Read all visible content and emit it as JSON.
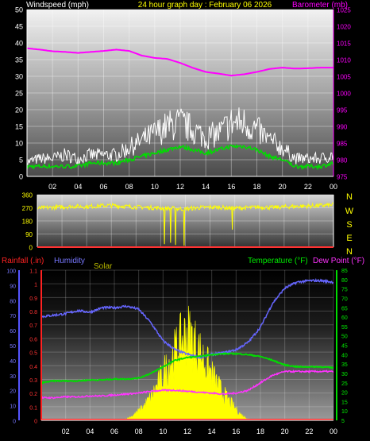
{
  "header": {
    "wind_label": "Windspeed (mph)",
    "title": "24 hour graph day : February 06 2026",
    "baro_label": "Barometer (mb)"
  },
  "panel3_labels": {
    "rain": "Rainfall (.in)",
    "humidity": "Humidity",
    "solar": "Solar",
    "temperature": "Temperature (°F)",
    "dewpoint": "Dew Point (°F)"
  },
  "compass": [
    "N",
    "W",
    "S",
    "E",
    "N"
  ],
  "x_ticks": [
    "02",
    "04",
    "06",
    "08",
    "10",
    "12",
    "14",
    "16",
    "18",
    "20",
    "22",
    "00"
  ],
  "colors": {
    "wind_gust": "#ffffff",
    "wind_avg": "#00dd00",
    "barometer": "#ff00ff",
    "direction": "#ffff00",
    "temperature": "#00dd00",
    "dewpoint": "#ff33ff",
    "humidity": "#6666ff",
    "solar": "#ffff00",
    "rain": "#ff2222"
  },
  "chart_data": [
    {
      "type": "line",
      "name": "wind-barometer",
      "x_ticks": [
        "02",
        "04",
        "06",
        "08",
        "10",
        "12",
        "14",
        "16",
        "18",
        "20",
        "22",
        "00"
      ],
      "y_left": {
        "label": "Windspeed (mph)",
        "range": [
          0,
          50
        ],
        "ticks": [
          0,
          5,
          10,
          15,
          20,
          25,
          30,
          35,
          40,
          45,
          50
        ]
      },
      "y_right": {
        "label": "Barometer (mb)",
        "range": [
          975,
          1025
        ],
        "ticks": [
          975,
          980,
          985,
          990,
          995,
          1000,
          1005,
          1010,
          1015,
          1020,
          1025
        ]
      },
      "series": [
        {
          "name": "Windspeed",
          "axis": "left",
          "x": [
            0,
            1,
            2,
            3,
            4,
            5,
            6,
            7,
            8,
            9,
            10,
            11,
            12,
            13,
            14,
            15,
            16,
            17,
            18,
            19,
            20,
            21,
            22,
            23,
            24
          ],
          "values": [
            3,
            3,
            3,
            3,
            3,
            4,
            4,
            4,
            5,
            6,
            7,
            8,
            9,
            8,
            7,
            8,
            9,
            9,
            8,
            6,
            5,
            3,
            3,
            3,
            4
          ]
        },
        {
          "name": "Gust",
          "axis": "left",
          "x": [
            0,
            1,
            2,
            3,
            4,
            5,
            6,
            7,
            8,
            9,
            10,
            11,
            12,
            13,
            14,
            15,
            16,
            17,
            18,
            19,
            20,
            21,
            22,
            23,
            24
          ],
          "values": [
            4,
            5,
            5,
            6,
            5,
            6,
            6,
            6,
            8,
            10,
            12,
            14,
            15,
            13,
            11,
            12,
            15,
            15,
            13,
            10,
            8,
            5,
            5,
            5,
            6
          ]
        },
        {
          "name": "Barometer",
          "axis": "right",
          "x": [
            0,
            1,
            2,
            3,
            4,
            5,
            6,
            7,
            8,
            9,
            10,
            11,
            12,
            13,
            14,
            15,
            16,
            17,
            18,
            19,
            20,
            21,
            22,
            23,
            24
          ],
          "values": [
            1013.4,
            1013,
            1012.5,
            1012.3,
            1012,
            1012.3,
            1012.6,
            1013,
            1012.6,
            1011.2,
            1010.5,
            1010.2,
            1009,
            1007.5,
            1006.3,
            1005.8,
            1005.2,
            1005.6,
            1006.3,
            1007.2,
            1007.6,
            1007.3,
            1007.4,
            1007.6,
            1007.6
          ]
        }
      ]
    },
    {
      "type": "scatter",
      "name": "wind-direction",
      "x_ticks": [
        "02",
        "04",
        "06",
        "08",
        "10",
        "12",
        "14",
        "16",
        "18",
        "20",
        "22",
        "00"
      ],
      "y": {
        "range": [
          0,
          360
        ],
        "ticks": [
          0,
          90,
          180,
          270,
          360
        ]
      },
      "series": [
        {
          "name": "Direction",
          "x": [
            0,
            1,
            2,
            3,
            4,
            5,
            6,
            7,
            8,
            9,
            10,
            11,
            12,
            13,
            14,
            15,
            16,
            17,
            18,
            19,
            20,
            21,
            22,
            23,
            24
          ],
          "values": [
            265,
            272,
            275,
            280,
            278,
            283,
            286,
            280,
            275,
            272,
            268,
            265,
            262,
            270,
            275,
            272,
            268,
            270,
            275,
            272,
            276,
            280,
            282,
            285,
            290
          ]
        }
      ],
      "dips": [
        {
          "x": 10.3,
          "value": 20
        },
        {
          "x": 10.8,
          "value": 30
        },
        {
          "x": 11.2,
          "value": 15
        },
        {
          "x": 11.9,
          "value": 10
        },
        {
          "x": 15.8,
          "value": 120
        }
      ]
    },
    {
      "type": "line",
      "name": "rain-humidity-solar-temp-dew",
      "x_ticks": [
        "02",
        "04",
        "06",
        "08",
        "10",
        "12",
        "14",
        "16",
        "18",
        "20",
        "22",
        "00"
      ],
      "y_humidity": {
        "range": [
          0,
          100
        ],
        "ticks": [
          0,
          10,
          20,
          30,
          40,
          50,
          60,
          70,
          80,
          90,
          100
        ]
      },
      "y_rain": {
        "range": [
          0,
          1.1
        ],
        "ticks": [
          0,
          0.1,
          0.2,
          0.3,
          0.4,
          0.5,
          0.6,
          0.7,
          0.8,
          0.9,
          1,
          1.1
        ]
      },
      "y_temp": {
        "range": [
          5,
          85
        ],
        "ticks": [
          5,
          10,
          15,
          20,
          25,
          30,
          35,
          40,
          45,
          50,
          55,
          60,
          65,
          70,
          75,
          80,
          85
        ]
      },
      "series": [
        {
          "name": "Humidity",
          "axis": "humidity",
          "x": [
            0,
            1,
            2,
            3,
            4,
            5,
            6,
            7,
            8,
            9,
            10,
            11,
            12,
            13,
            14,
            15,
            16,
            17,
            18,
            19,
            20,
            21,
            22,
            23,
            24
          ],
          "values": [
            69,
            70,
            71,
            73,
            72,
            75,
            75,
            76,
            74,
            65,
            53,
            47,
            44,
            42,
            44,
            45,
            47,
            52,
            62,
            78,
            88,
            92,
            93,
            93,
            92
          ]
        },
        {
          "name": "Temperature",
          "axis": "temp",
          "x": [
            0,
            1,
            2,
            3,
            4,
            5,
            6,
            7,
            8,
            9,
            10,
            11,
            12,
            13,
            14,
            15,
            16,
            17,
            18,
            19,
            20,
            21,
            22,
            23,
            24
          ],
          "values": [
            25,
            26,
            26,
            26,
            26.5,
            26.5,
            27,
            27,
            27.5,
            30,
            33.5,
            37,
            38.5,
            39,
            40,
            40.5,
            40.5,
            40,
            39,
            37,
            34.5,
            33.5,
            33.5,
            33.5,
            33
          ]
        },
        {
          "name": "Dew Point",
          "axis": "temp",
          "x": [
            0,
            1,
            2,
            3,
            4,
            5,
            6,
            7,
            8,
            9,
            10,
            11,
            12,
            13,
            14,
            15,
            16,
            17,
            18,
            19,
            20,
            21,
            22,
            23,
            24
          ],
          "values": [
            17,
            17,
            17.5,
            17.5,
            18,
            18,
            18.5,
            19,
            19.5,
            20.5,
            21,
            21,
            20.5,
            20,
            19.5,
            19,
            19.5,
            21,
            25,
            29,
            31,
            31,
            31,
            31,
            31
          ]
        },
        {
          "name": "Solar",
          "axis": "humidity",
          "x": [
            0,
            6,
            7,
            7.5,
            8,
            8.5,
            9,
            9.5,
            10,
            10.5,
            11,
            11.5,
            12,
            12.5,
            13,
            13.5,
            14,
            14.5,
            15,
            15.5,
            16,
            16.5,
            17,
            17.5,
            24
          ],
          "values": [
            0,
            0,
            1,
            3,
            6,
            10,
            15,
            22,
            30,
            38,
            45,
            52,
            58,
            52,
            45,
            38,
            30,
            23,
            17,
            12,
            7,
            3,
            1,
            0,
            0
          ]
        },
        {
          "name": "Rainfall",
          "axis": "rain",
          "x": [
            0,
            24
          ],
          "values": [
            0,
            0
          ]
        }
      ]
    }
  ]
}
